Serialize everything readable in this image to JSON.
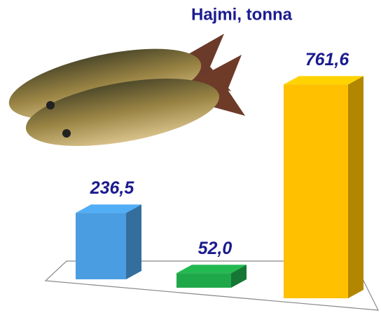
{
  "chart_data": {
    "type": "bar3d",
    "title": "Hajmi, tonna",
    "categories": [
      null,
      null,
      null
    ],
    "values": [
      236.5,
      52.0,
      761.6
    ],
    "value_labels": [
      "236,5",
      "52,0",
      "761,6"
    ],
    "colors": [
      "#4a9de0",
      "#1fa84a",
      "#ffc000"
    ],
    "ylim": [
      0,
      800
    ]
  }
}
